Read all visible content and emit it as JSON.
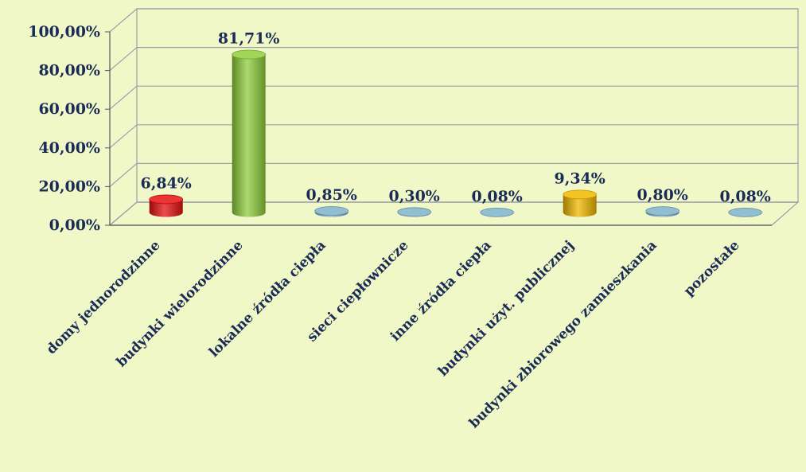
{
  "chart_data": {
    "type": "bar",
    "title": "",
    "xlabel": "",
    "ylabel": "",
    "ylim": [
      0,
      100
    ],
    "ytick_values": [
      0,
      20,
      40,
      60,
      80,
      100
    ],
    "ytick_labels": [
      "0,00%",
      "20,00%",
      "40,00%",
      "60,00%",
      "80,00%",
      "100,00%"
    ],
    "categories": [
      "domy jednorodzinne",
      "budynki wielorodzinne",
      "lokalne źródła ciepła",
      "sieci ciepłownicze",
      "inne źródła ciepła",
      "budynki użyt. publicznej",
      "budynki zbiorowego zamieszkania",
      "pozostałe"
    ],
    "values": [
      6.84,
      81.71,
      0.85,
      0.3,
      0.08,
      9.34,
      0.8,
      0.08
    ],
    "data_labels": [
      "6,84%",
      "81,71%",
      "0,85%",
      "0,30%",
      "0,08%",
      "9,34%",
      "0,80%",
      "0,08%"
    ],
    "bar_colors": [
      "#e81010",
      "#8fcf3c",
      "#7fb3c9",
      "#7fb3c9",
      "#7fb3c9",
      "#f2b800",
      "#7fb3c9",
      "#7fb3c9"
    ],
    "style": "3d-cylinder",
    "grid": true,
    "legend": "none",
    "background_color": "#f0f8c8"
  }
}
